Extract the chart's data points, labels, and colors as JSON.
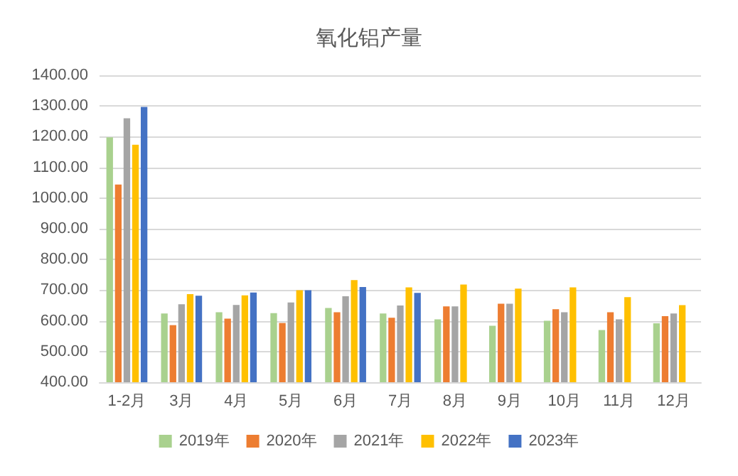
{
  "chart_data": {
    "type": "bar",
    "title": "氧化铝产量",
    "categories": [
      "1-2月",
      "3月",
      "4月",
      "5月",
      "6月",
      "7月",
      "8月",
      "9月",
      "10月",
      "11月",
      "12月"
    ],
    "series": [
      {
        "name": "2019年",
        "color": "#a9d18e",
        "values": [
          1198,
          624,
          628,
          625,
          642,
          624,
          605,
          584,
          600,
          570,
          592
        ]
      },
      {
        "name": "2020年",
        "color": "#ed7d31",
        "values": [
          1044,
          586,
          607,
          593,
          628,
          610,
          647,
          656,
          638,
          628,
          615
        ]
      },
      {
        "name": "2021年",
        "color": "#a5a5a5",
        "values": [
          1260,
          654,
          652,
          660,
          680,
          650,
          647,
          656,
          628,
          605,
          624
        ]
      },
      {
        "name": "2022年",
        "color": "#ffc000",
        "values": [
          1174,
          687,
          683,
          700,
          733,
          709,
          718,
          705,
          709,
          677,
          651
        ]
      },
      {
        "name": "2023年",
        "color": "#4472c4",
        "values": [
          1297,
          682,
          692,
          700,
          710,
          691,
          null,
          null,
          null,
          null,
          null
        ]
      }
    ],
    "ylim": [
      400,
      1400
    ],
    "yticks": [
      {
        "value": 400,
        "label": "400.00"
      },
      {
        "value": 500,
        "label": "500.00"
      },
      {
        "value": 600,
        "label": "600.00"
      },
      {
        "value": 700,
        "label": "700.00"
      },
      {
        "value": 800,
        "label": "800.00"
      },
      {
        "value": 900,
        "label": "900.00"
      },
      {
        "value": 1000,
        "label": "1000.00"
      },
      {
        "value": 1100,
        "label": "1100.00"
      },
      {
        "value": 1200,
        "label": "1200.00"
      },
      {
        "value": 1300,
        "label": "1300.00"
      },
      {
        "value": 1400,
        "label": "1400.00"
      }
    ],
    "grid": "y",
    "legend": "bottom"
  }
}
